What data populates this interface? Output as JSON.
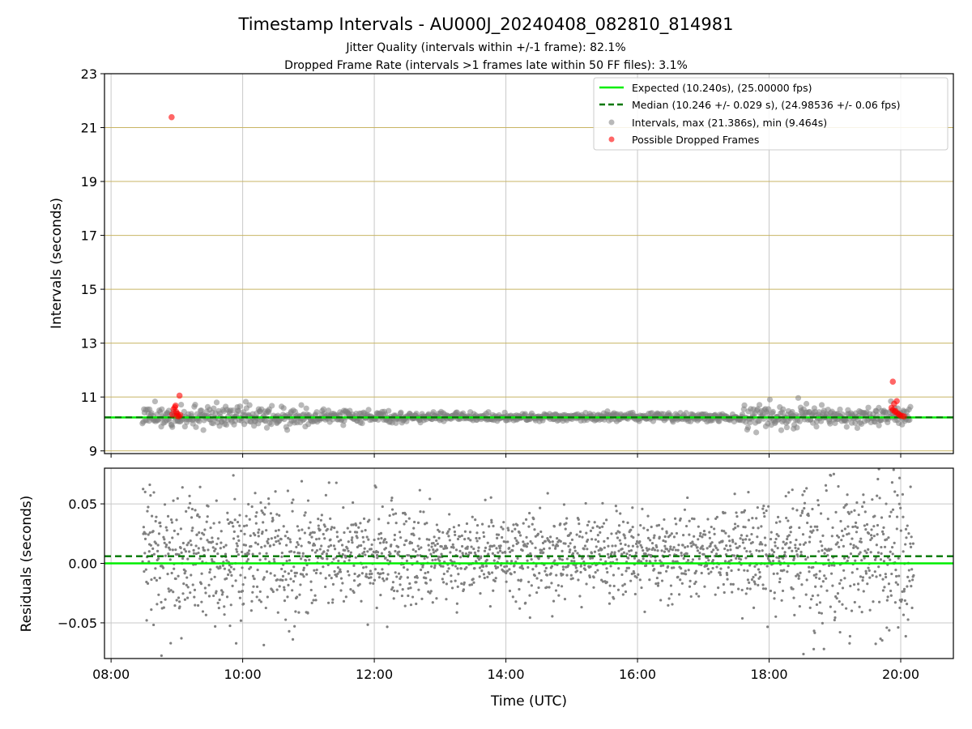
{
  "figure": {
    "title": "Timestamp Intervals - AU000J_20240408_082810_814981",
    "subtitle_1": "Jitter Quality (intervals within +/-1 frame): 82.1%",
    "subtitle_2": "Dropped Frame Rate (intervals >1 frames late within 50 FF files): 3.1%"
  },
  "colors": {
    "expected": "#00ee00",
    "median": "#007700",
    "intervals": "#808080",
    "dropped": "#ff0000",
    "ygrid_top": "#c8b464",
    "grid": "#c8c8c8"
  },
  "chart_data": [
    {
      "type": "scatter",
      "ylabel": "Intervals (seconds)",
      "ylim": [
        8.9,
        23.0
      ],
      "y_ticks": [
        9,
        11,
        13,
        15,
        17,
        19,
        21,
        23
      ],
      "y_tick_labels": [
        "9",
        "11",
        "13",
        "15",
        "17",
        "19",
        "21",
        "23"
      ],
      "xlim_hours": [
        7.9,
        20.8
      ],
      "x_ticks_hours": [
        8,
        10,
        12,
        14,
        16,
        18,
        20
      ],
      "grid": true,
      "legend_position": "top-right",
      "expected_interval": 10.24,
      "median_interval": 10.246,
      "legend": [
        {
          "label": "Expected (10.240s), (25.00000 fps)",
          "style": "solid-line"
        },
        {
          "label": "Median (10.246 +/- 0.029 s), (24.98536 +/- 0.06 fps)",
          "style": "dashed-line"
        },
        {
          "label": "Intervals, max (21.386s), min (9.464s)",
          "style": "grey-dot"
        },
        {
          "label": "Possible Dropped Frames",
          "style": "red-dot"
        }
      ],
      "max_interval": 21.386,
      "min_interval": 9.464,
      "dropped_frames": [
        {
          "x": 8.92,
          "y": 21.386
        },
        {
          "x": 9.04,
          "y": 11.05
        },
        {
          "x": 19.88,
          "y": 11.57
        },
        {
          "x": 8.95,
          "y": 10.55
        },
        {
          "x": 8.97,
          "y": 10.62
        },
        {
          "x": 8.99,
          "y": 10.45
        },
        {
          "x": 9.01,
          "y": 10.38
        },
        {
          "x": 9.0,
          "y": 10.3
        },
        {
          "x": 9.03,
          "y": 10.28
        },
        {
          "x": 8.93,
          "y": 10.35
        },
        {
          "x": 9.05,
          "y": 10.33
        },
        {
          "x": 8.98,
          "y": 10.68
        },
        {
          "x": 19.86,
          "y": 10.6
        },
        {
          "x": 19.9,
          "y": 10.75
        },
        {
          "x": 19.92,
          "y": 10.48
        },
        {
          "x": 19.94,
          "y": 10.85
        },
        {
          "x": 19.95,
          "y": 10.4
        },
        {
          "x": 19.97,
          "y": 10.36
        },
        {
          "x": 19.99,
          "y": 10.32
        },
        {
          "x": 20.02,
          "y": 10.3
        },
        {
          "x": 20.05,
          "y": 10.28
        },
        {
          "x": 19.88,
          "y": 10.52
        },
        {
          "x": 19.91,
          "y": 10.45
        }
      ],
      "interval_points_summary": "dense band 9.5–11.0 s between 08:30 and 20:10, clustered near 10.24 s"
    },
    {
      "type": "scatter",
      "xlabel": "Time (UTC)",
      "ylabel": "Residuals (seconds)",
      "ylim": [
        -0.08,
        0.08
      ],
      "y_ticks": [
        -0.05,
        0.0,
        0.05
      ],
      "y_tick_labels": [
        "−0.05",
        "0.00",
        "0.05"
      ],
      "xlim_hours": [
        7.9,
        20.8
      ],
      "x_ticks_hours": [
        8,
        10,
        12,
        14,
        16,
        18,
        20
      ],
      "x_tick_labels": [
        "08:00",
        "10:00",
        "12:00",
        "14:00",
        "16:00",
        "18:00",
        "20:00"
      ],
      "grid": true,
      "expected_residual": 0.0,
      "median_residual": 0.006,
      "residual_points_summary": "residuals spread mostly within ±0.05 s, wider near 09:00 and 19:00–20:00"
    }
  ]
}
